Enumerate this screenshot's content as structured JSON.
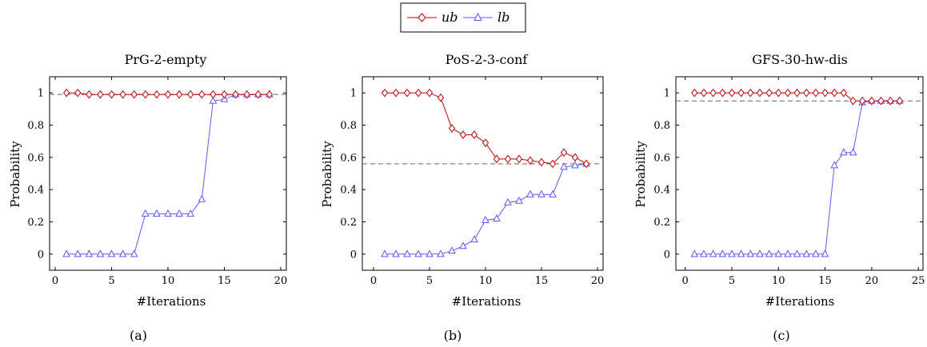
{
  "legend": {
    "entries": [
      {
        "label": "ub",
        "color": "#c00000",
        "marker": "diamond"
      },
      {
        "label": "lb",
        "color": "#5a5aff",
        "marker": "triangle"
      }
    ]
  },
  "chart_data": [
    {
      "type": "line",
      "title": "PrG-2-empty",
      "subcaption": "(a)",
      "xlabel": "#Iterations",
      "ylabel": "Probability",
      "xlim": [
        -0.5,
        20.5
      ],
      "ylim": [
        -0.1,
        1.1
      ],
      "xticks": [
        0,
        5,
        10,
        15,
        20
      ],
      "yticks": [
        0,
        0.2,
        0.4,
        0.6,
        0.8,
        1
      ],
      "reference_line": 0.99,
      "series": [
        {
          "name": "ub",
          "x": [
            1,
            2,
            3,
            4,
            5,
            6,
            7,
            8,
            9,
            10,
            11,
            12,
            13,
            14,
            15,
            16,
            17,
            18,
            19
          ],
          "y": [
            1,
            1,
            0.99,
            0.99,
            0.99,
            0.99,
            0.99,
            0.99,
            0.99,
            0.99,
            0.99,
            0.99,
            0.99,
            0.99,
            0.99,
            0.99,
            0.99,
            0.99,
            0.99
          ]
        },
        {
          "name": "lb",
          "x": [
            1,
            2,
            3,
            4,
            5,
            6,
            7,
            8,
            9,
            10,
            11,
            12,
            13,
            14,
            15,
            16,
            17,
            18,
            19
          ],
          "y": [
            0,
            0,
            0,
            0,
            0,
            0,
            0,
            0.25,
            0.25,
            0.25,
            0.25,
            0.25,
            0.34,
            0.95,
            0.96,
            0.99,
            0.99,
            0.99,
            0.99
          ]
        }
      ]
    },
    {
      "type": "line",
      "title": "PoS-2-3-conf",
      "subcaption": "(b)",
      "xlabel": "#Iterations",
      "ylabel": "Probability",
      "xlim": [
        -1,
        20.5
      ],
      "ylim": [
        -0.1,
        1.1
      ],
      "xticks": [
        0,
        5,
        10,
        15,
        20
      ],
      "yticks": [
        0,
        0.2,
        0.4,
        0.6,
        0.8,
        1
      ],
      "reference_line": 0.56,
      "series": [
        {
          "name": "ub",
          "x": [
            1,
            2,
            3,
            4,
            5,
            6,
            7,
            8,
            9,
            10,
            11,
            12,
            13,
            14,
            15,
            16,
            17,
            18,
            19
          ],
          "y": [
            1,
            1,
            1,
            1,
            1,
            0.97,
            0.78,
            0.74,
            0.74,
            0.69,
            0.59,
            0.59,
            0.59,
            0.58,
            0.57,
            0.56,
            0.63,
            0.6,
            0.56
          ]
        },
        {
          "name": "lb",
          "x": [
            1,
            2,
            3,
            4,
            5,
            6,
            7,
            8,
            9,
            10,
            11,
            12,
            13,
            14,
            15,
            16,
            17,
            18,
            19
          ],
          "y": [
            0,
            0,
            0,
            0,
            0,
            0,
            0.02,
            0.05,
            0.09,
            0.21,
            0.22,
            0.32,
            0.33,
            0.37,
            0.37,
            0.37,
            0.54,
            0.55,
            0.56
          ]
        }
      ]
    },
    {
      "type": "line",
      "title": "GFS-30-hw-dis",
      "subcaption": "(c)",
      "xlabel": "#Iterations",
      "ylabel": "Probability",
      "xlim": [
        -1,
        25.5
      ],
      "ylim": [
        -0.1,
        1.1
      ],
      "xticks": [
        0,
        5,
        10,
        15,
        20,
        25
      ],
      "yticks": [
        0,
        0.2,
        0.4,
        0.6,
        0.8,
        1
      ],
      "reference_line": 0.95,
      "series": [
        {
          "name": "ub",
          "x": [
            1,
            2,
            3,
            4,
            5,
            6,
            7,
            8,
            9,
            10,
            11,
            12,
            13,
            14,
            15,
            16,
            17,
            18,
            19,
            20,
            21,
            22,
            23
          ],
          "y": [
            1,
            1,
            1,
            1,
            1,
            1,
            1,
            1,
            1,
            1,
            1,
            1,
            1,
            1,
            1,
            1,
            1,
            0.95,
            0.95,
            0.95,
            0.95,
            0.95,
            0.95
          ]
        },
        {
          "name": "lb",
          "x": [
            1,
            2,
            3,
            4,
            5,
            6,
            7,
            8,
            9,
            10,
            11,
            12,
            13,
            14,
            15,
            16,
            17,
            18,
            19,
            20,
            21,
            22,
            23
          ],
          "y": [
            0,
            0,
            0,
            0,
            0,
            0,
            0,
            0,
            0,
            0,
            0,
            0,
            0,
            0,
            0,
            0.55,
            0.63,
            0.63,
            0.94,
            0.95,
            0.95,
            0.95,
            0.95
          ]
        }
      ]
    }
  ]
}
